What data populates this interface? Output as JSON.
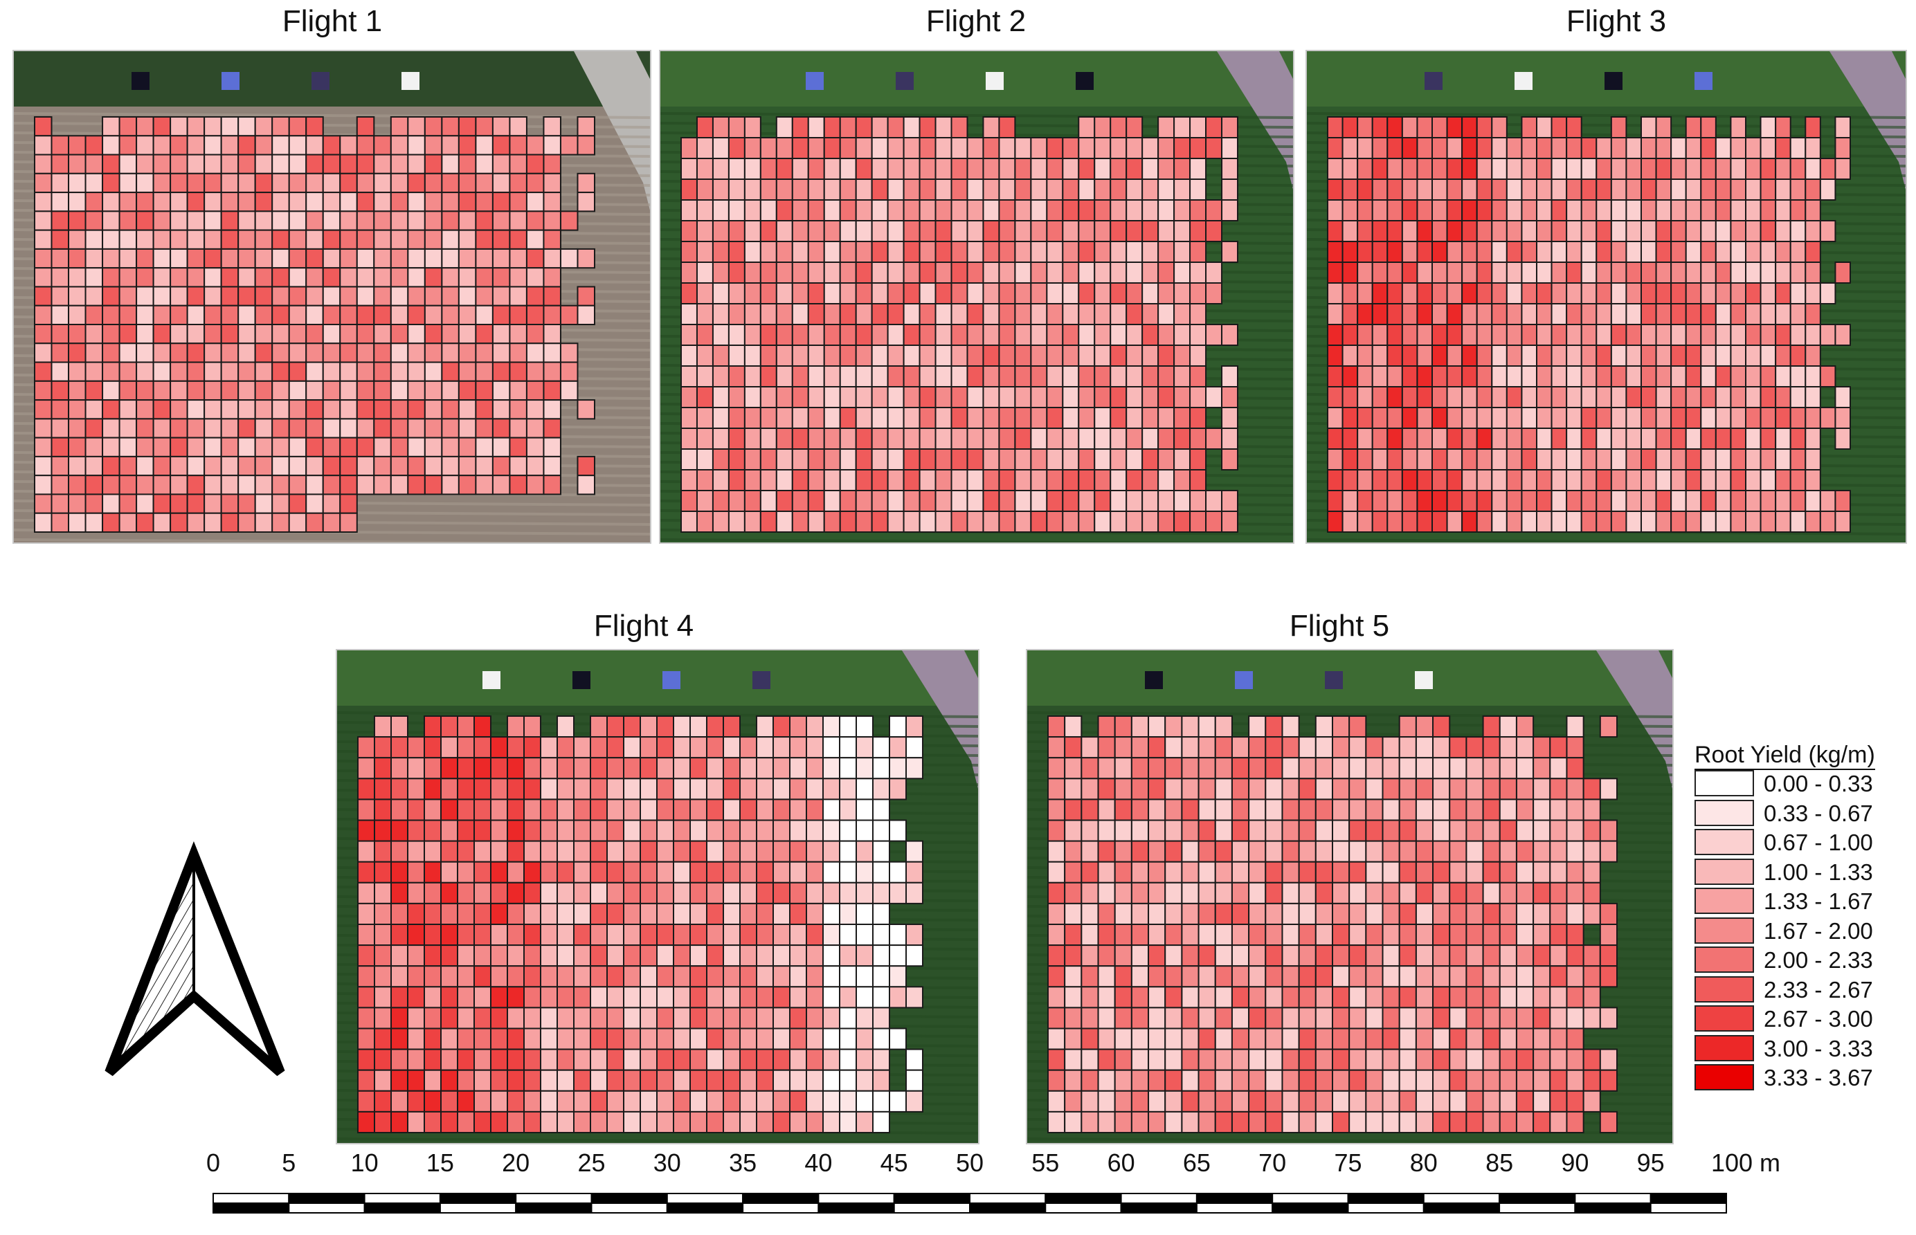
{
  "panels": [
    {
      "title": "Flight 1",
      "bg": "#8f8278",
      "seed": 11,
      "rows": 22,
      "cols": 33
    },
    {
      "title": "Flight 2",
      "bg": "#2f5a2c",
      "seed": 23,
      "rows": 20,
      "cols": 35
    },
    {
      "title": "Flight 3",
      "bg": "#2f5a2c",
      "seed": 37,
      "rows": 20,
      "cols": 35
    },
    {
      "title": "Flight 4",
      "bg": "#2c5229",
      "seed": 51,
      "rows": 20,
      "cols": 34
    },
    {
      "title": "Flight 5",
      "bg": "#2c5229",
      "seed": 67,
      "rows": 20,
      "cols": 34
    }
  ],
  "legend": {
    "title": "Root Yield (kg/m)",
    "classes": [
      {
        "label": "0.00 - 0.33",
        "color": "#ffffff"
      },
      {
        "label": "0.33 - 0.67",
        "color": "#fde6e6"
      },
      {
        "label": "0.67 - 1.00",
        "color": "#fbd0d0"
      },
      {
        "label": "1.00 - 1.33",
        "color": "#f9b9b9"
      },
      {
        "label": "1.33 - 1.67",
        "color": "#f7a2a2"
      },
      {
        "label": "1.67 - 2.00",
        "color": "#f48b8b"
      },
      {
        "label": "2.00 - 2.33",
        "color": "#f27373"
      },
      {
        "label": "2.33 - 2.67",
        "color": "#f05b5b"
      },
      {
        "label": "2.67 - 3.00",
        "color": "#ee4242"
      },
      {
        "label": "3.00 - 3.33",
        "color": "#ec2828"
      },
      {
        "label": "3.33 - 3.67",
        "color": "#ea0000"
      }
    ]
  },
  "scale_bar": {
    "labels": [
      "0",
      "5",
      "10",
      "15",
      "20",
      "25",
      "30",
      "35",
      "40",
      "45",
      "50",
      "55",
      "60",
      "65",
      "70",
      "75",
      "80",
      "85",
      "90",
      "95",
      "100 m"
    ]
  },
  "north_arrow": {
    "icon": "north-arrow-icon"
  }
}
